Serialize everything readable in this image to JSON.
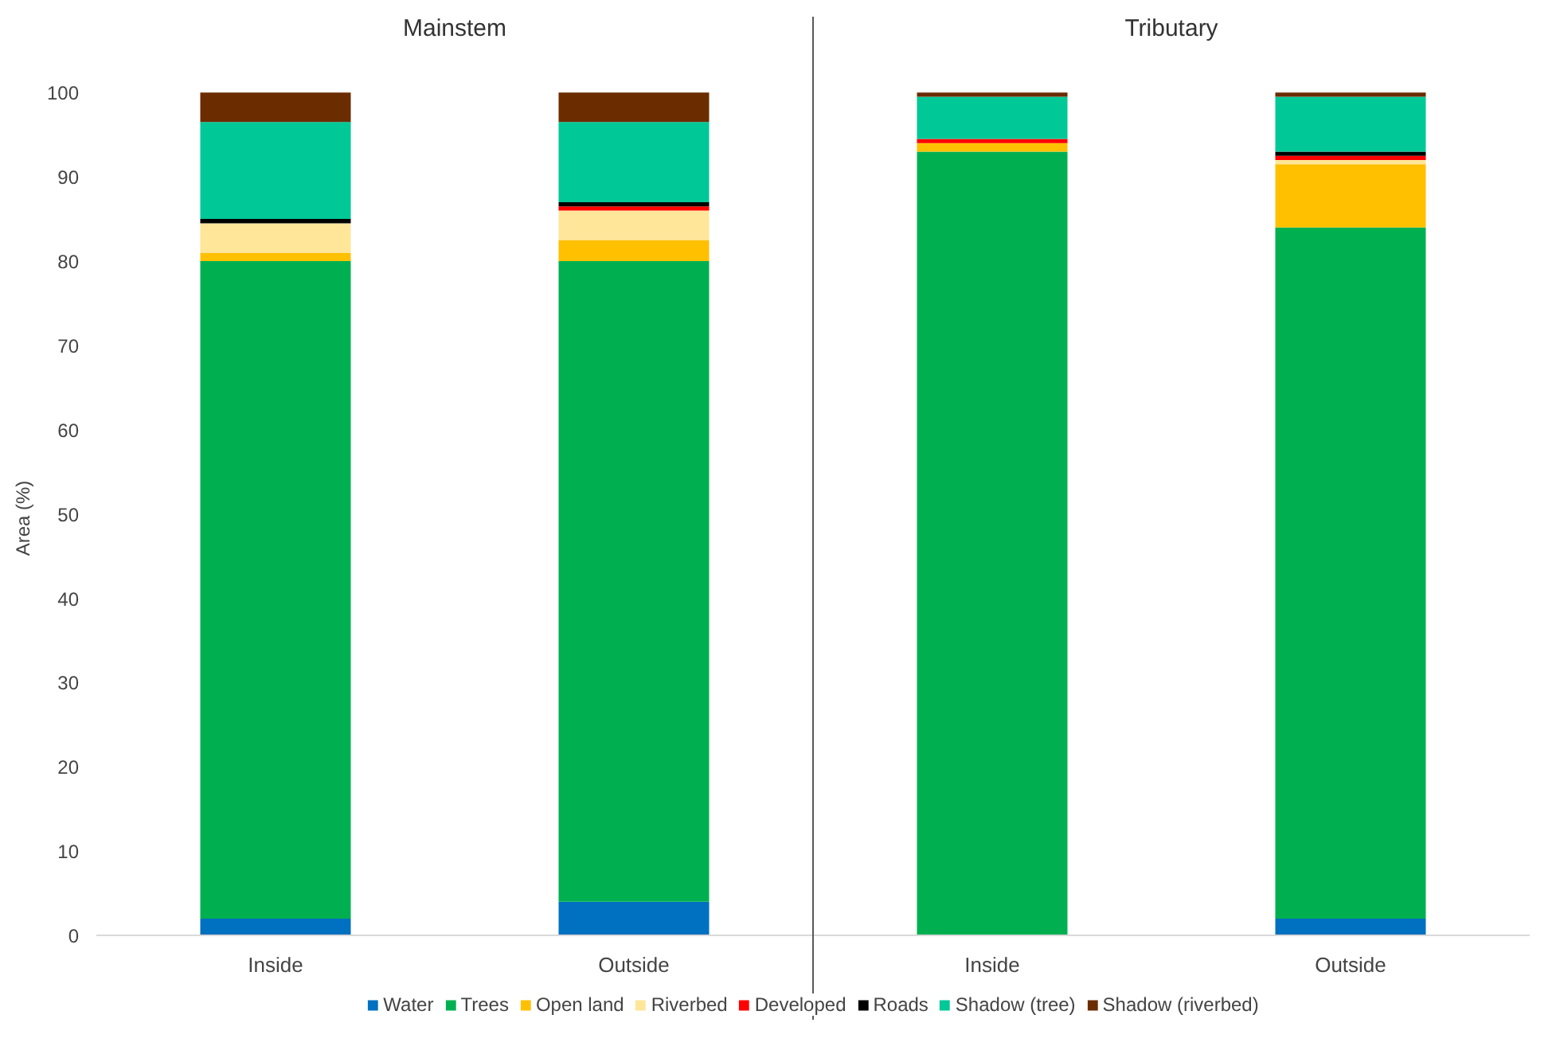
{
  "chart_data": {
    "type": "bar",
    "stacked": true,
    "ylabel": "Area (%)",
    "categories": [
      "Inside",
      "Outside",
      "Inside",
      "Outside"
    ],
    "annotations": [
      "Mainstem",
      "Tributary"
    ],
    "ylim": [
      0,
      100
    ],
    "yticks": [
      0,
      10,
      20,
      30,
      40,
      50,
      60,
      70,
      80,
      90,
      100
    ],
    "grid": false,
    "legend": "bottom",
    "series": [
      {
        "name": "Water",
        "color": "#0070c0",
        "values": [
          2,
          4,
          0,
          2
        ]
      },
      {
        "name": "Trees",
        "color": "#00b050",
        "values": [
          78,
          76,
          93,
          82
        ]
      },
      {
        "name": "Open land",
        "color": "#ffc000",
        "values": [
          1,
          2.5,
          1,
          7.5
        ]
      },
      {
        "name": "Riverbed",
        "color": "#ffe699",
        "values": [
          3.5,
          3.5,
          0,
          0.5
        ]
      },
      {
        "name": "Developed",
        "color": "#ff0000",
        "values": [
          0,
          0.5,
          0.5,
          0.5
        ]
      },
      {
        "name": "Roads",
        "color": "#000000",
        "values": [
          0.5,
          0.5,
          0,
          0.5
        ]
      },
      {
        "name": "Shadow (tree)",
        "color": "#00c896",
        "values": [
          11.5,
          9.5,
          5,
          6.5
        ]
      },
      {
        "name": "Shadow (riverbed)",
        "color": "#6b2c00",
        "values": [
          3.5,
          3.5,
          0.5,
          0.5
        ]
      }
    ]
  }
}
